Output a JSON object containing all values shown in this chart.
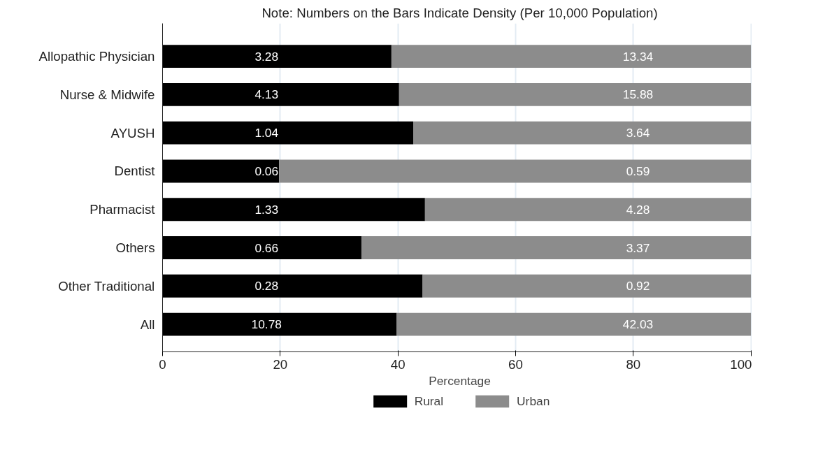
{
  "chart_data": {
    "type": "bar",
    "orientation": "horizontal",
    "stacked": true,
    "title": "Note: Numbers on the Bars Indicate Density (Per 10,000 Population)",
    "xlabel": "Percentage",
    "categories": [
      "Allopathic Physician",
      "Nurse & Midwife",
      "AYUSH",
      "Dentist",
      "Pharmacist",
      "Others",
      "Other Traditional",
      "All"
    ],
    "series": [
      {
        "name": "Rural",
        "color": "#000000",
        "values": [
          38.9,
          40.2,
          42.6,
          19.8,
          44.6,
          33.8,
          44.2,
          39.8
        ]
      },
      {
        "name": "Urban",
        "color": "#8c8c8c",
        "values": [
          61.1,
          59.8,
          57.4,
          80.2,
          55.4,
          66.2,
          55.8,
          60.2
        ]
      }
    ],
    "annotations": [
      "3.28",
      "4.13",
      "1.04",
      "0.06",
      "1.33",
      "0.66",
      "0.28",
      "10.78",
      "13.34",
      "15.88",
      "3.64",
      "0.59",
      "4.28",
      "3.37",
      "0.92",
      "42.03"
    ],
    "xlim": [
      0,
      101
    ],
    "xticks": [
      0,
      20,
      40,
      60,
      80,
      100
    ],
    "grid": "x",
    "legend": "bottom"
  }
}
